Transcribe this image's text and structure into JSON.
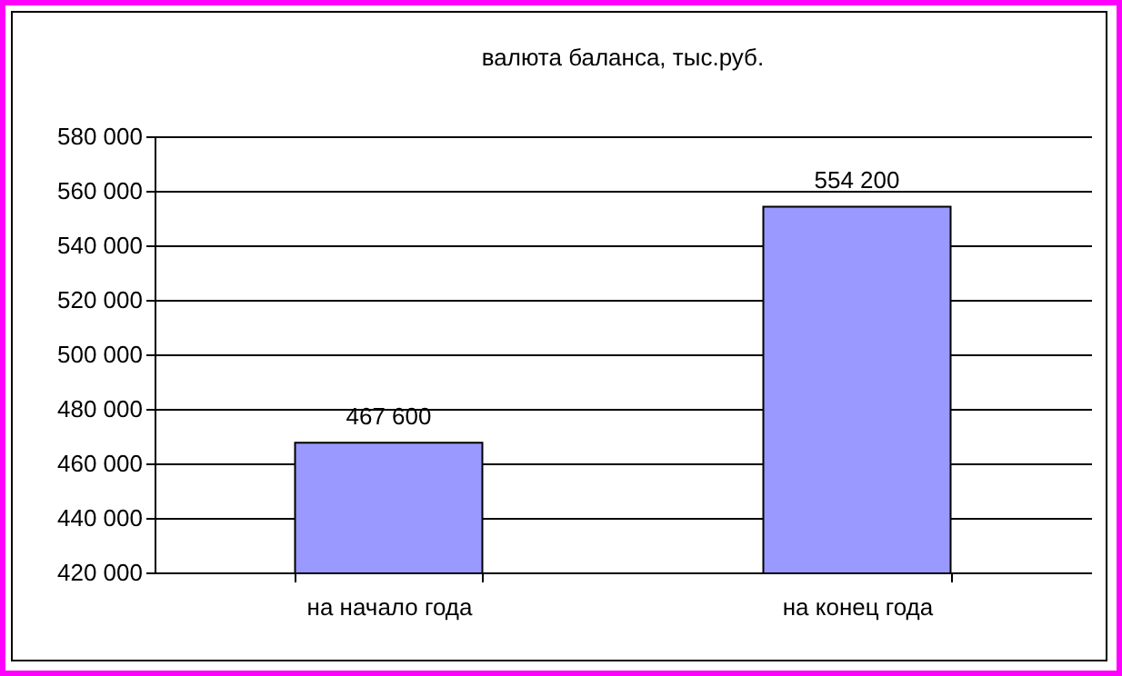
{
  "chart_data": {
    "type": "bar",
    "title": "валюта баланса, тыс.руб.",
    "categories": [
      "на начало года",
      "на конец года"
    ],
    "values": [
      467600,
      554200
    ],
    "value_labels": [
      "467 600",
      "554 200"
    ],
    "color": "#9999ff",
    "ylim": [
      420000,
      580000
    ],
    "yticks": [
      {
        "value": 420000,
        "label": "420 000"
      },
      {
        "value": 440000,
        "label": "440 000"
      },
      {
        "value": 460000,
        "label": "460 000"
      },
      {
        "value": 480000,
        "label": "480 000"
      },
      {
        "value": 500000,
        "label": "500 000"
      },
      {
        "value": 520000,
        "label": "520 000"
      },
      {
        "value": 540000,
        "label": "540 000"
      },
      {
        "value": 560000,
        "label": "560 000"
      },
      {
        "value": 580000,
        "label": "580 000"
      }
    ],
    "grid": "y"
  }
}
